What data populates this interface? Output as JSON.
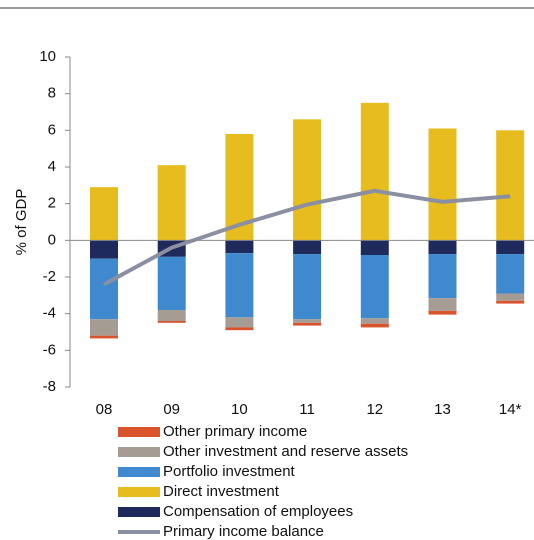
{
  "chart_data": {
    "type": "bar",
    "stacked": true,
    "y_label": "% of GDP",
    "categories": [
      "08",
      "09",
      "10",
      "11",
      "12",
      "13",
      "14*"
    ],
    "ylim": [
      -8,
      10
    ],
    "yticks": [
      -8,
      -6,
      -4,
      -2,
      0,
      2,
      4,
      6,
      8,
      10
    ],
    "series": [
      {
        "name": "Other primary income",
        "color": "#d9532c",
        "values": [
          -0.15,
          -0.1,
          -0.15,
          -0.15,
          -0.2,
          -0.2,
          -0.15
        ]
      },
      {
        "name": "Other investment and reserve assets",
        "color": "#a59d94",
        "values": [
          -0.9,
          -0.6,
          -0.55,
          -0.2,
          -0.3,
          -0.7,
          -0.4
        ]
      },
      {
        "name": "Portfolio investment",
        "color": "#3f89cf",
        "values": [
          -3.3,
          -2.9,
          -3.5,
          -3.55,
          -3.45,
          -2.4,
          -2.15
        ]
      },
      {
        "name": "Direct investment",
        "color": "#e6bc1e",
        "values": [
          2.9,
          4.1,
          5.8,
          6.6,
          7.5,
          6.1,
          6.0
        ]
      },
      {
        "name": "Compensation of employees",
        "color": "#1f2a5c",
        "values": [
          -1.0,
          -0.9,
          -0.7,
          -0.75,
          -0.8,
          -0.75,
          -0.75
        ]
      },
      {
        "name": "Primary income balance",
        "color": "#8a8fa1",
        "type": "line",
        "values": [
          -2.4,
          -0.4,
          0.85,
          1.95,
          2.7,
          2.1,
          2.4
        ]
      }
    ]
  }
}
